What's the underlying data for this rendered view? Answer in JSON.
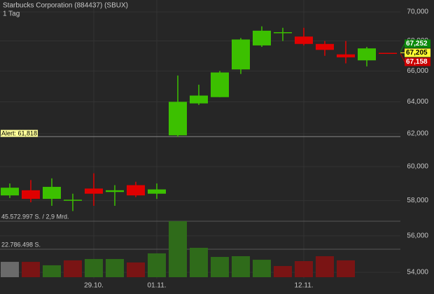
{
  "chart_data": {
    "type": "candlestick",
    "title": "Starbucks Corporation (884437) (SBUX)",
    "subtitle": "1 Tag",
    "log": true,
    "categories": [
      null,
      null,
      null,
      null,
      "29.10.",
      null,
      null,
      "01.11.",
      null,
      null,
      null,
      null,
      null,
      null,
      "12.11.",
      null,
      null,
      null,
      null
    ],
    "open": [
      58300,
      58600,
      58100,
      58000,
      58700,
      58500,
      58900,
      58400,
      61900,
      63900,
      64300,
      66100,
      67700,
      68550,
      68300,
      67800,
      67100,
      66700,
      67200
    ],
    "high": [
      59000,
      59200,
      59300,
      58400,
      59600,
      58900,
      59100,
      59000,
      65700,
      65100,
      66000,
      68200,
      69000,
      68900,
      68900,
      68000,
      68000,
      67600,
      67200
    ],
    "low": [
      58150,
      57900,
      57700,
      57400,
      57700,
      57700,
      58200,
      58100,
      61800,
      63800,
      64300,
      65800,
      67600,
      68000,
      67700,
      67000,
      66500,
      66300,
      67150
    ],
    "close": [
      58750,
      58100,
      58800,
      58050,
      58400,
      58600,
      58300,
      58650,
      64000,
      64400,
      65900,
      68100,
      68700,
      68600,
      67800,
      67400,
      66900,
      67500,
      67158
    ],
    "up_color": "#3cc000",
    "down_color": "#e00000",
    "ylim": [
      53215,
      70835
    ],
    "yticks": [
      {
        "value": 54000,
        "label": "54,000"
      },
      {
        "value": 56000,
        "label": "56,000"
      },
      {
        "value": 58000,
        "label": "58,000"
      },
      {
        "value": 60000,
        "label": "60,000"
      },
      {
        "value": 62000,
        "label": "62,000"
      },
      {
        "value": 64000,
        "label": "64,000"
      },
      {
        "value": 66000,
        "label": "66,000"
      },
      {
        "value": 68000,
        "label": "68,000"
      },
      {
        "value": 70000,
        "label": "70,000"
      }
    ],
    "volume": [
      12500000,
      12500000,
      9700000,
      13700000,
      14800000,
      14800000,
      12000000,
      19400000,
      45572997,
      23900000,
      16500000,
      17100000,
      14200000,
      9100000,
      13100000,
      17100000,
      13700000,
      null,
      null
    ],
    "volume_colors": [
      "#6a6a6a",
      "#7a1414",
      "#2f6b1a",
      "#7a1414",
      "#2f6b1a",
      "#2f6b1a",
      "#7a1414",
      "#2f6b1a",
      "#2f6b1a",
      "#2f6b1a",
      "#2f6b1a",
      "#2f6b1a",
      "#2f6b1a",
      "#7a1414",
      "#7a1414",
      "#7a1414",
      "#7a1414",
      null,
      null
    ],
    "volume_lim": [
      0,
      45572997
    ],
    "volume_ticks": [
      {
        "value": 45572997,
        "label": "45.572.997 S. / 2,9 Mrd."
      },
      {
        "value": 22786498,
        "label": "22.786.498 S."
      }
    ],
    "alert": {
      "value": 61818,
      "label": "Alert: 61,818"
    },
    "price_tags": [
      {
        "value": 67252,
        "label": "67,252",
        "color": "#0a8a0a",
        "text_color": "#ffffff"
      },
      {
        "value": 67205,
        "label": "67,205",
        "color": "#ffff33",
        "text_color": "#000000"
      },
      {
        "value": 67158,
        "label": "67,158",
        "color": "#cc0000",
        "text_color": "#ffffff"
      }
    ]
  }
}
